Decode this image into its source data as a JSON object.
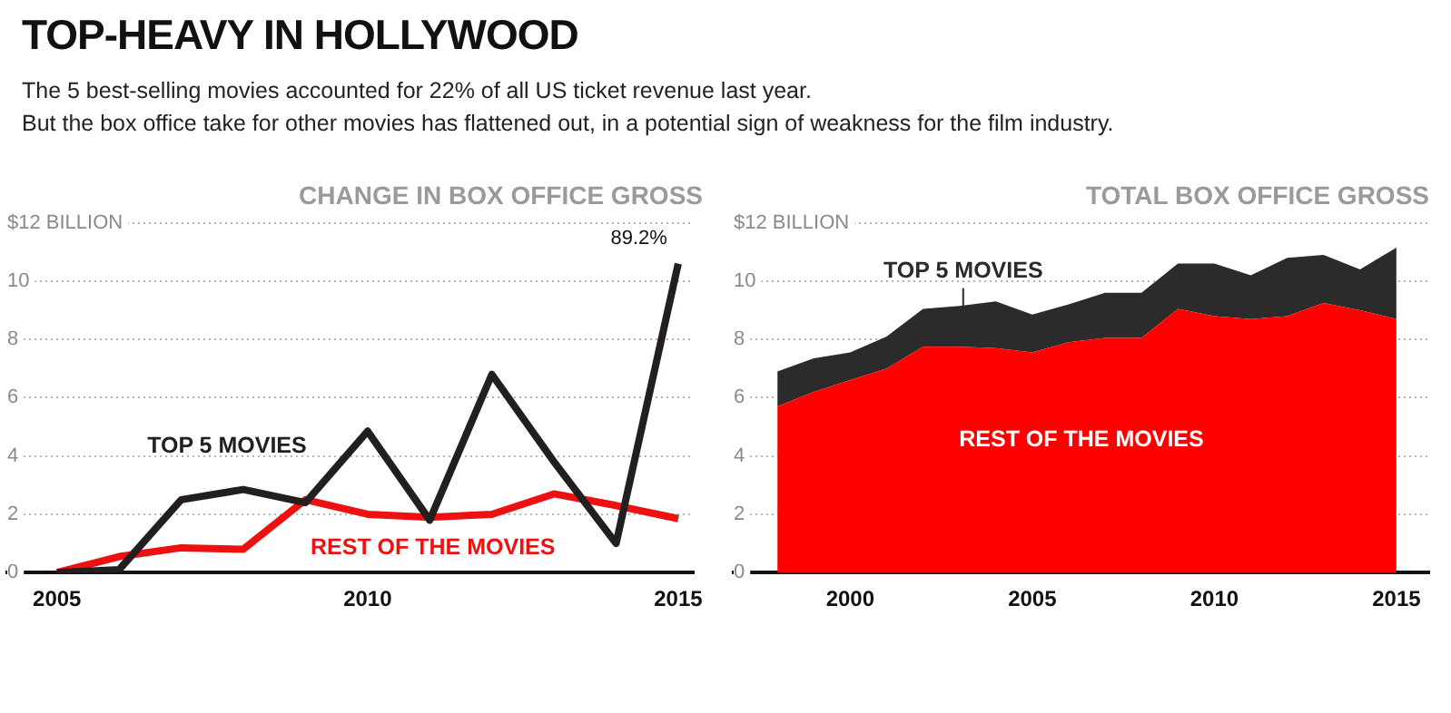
{
  "chart_data": [
    {
      "type": "line",
      "title": "CHANGE IN BOX OFFICE GROSS",
      "annotations": [
        "TOP-HEAVY IN HOLLYWOOD",
        "The 5 best-selling movies accounted for 22% of all US ticket revenue last year.",
        "But the box office take for other movies has flattened out, in a potential sign of weakness for the film industry.",
        {
          "text": "89.2%",
          "x": 2015,
          "y": 10.6
        }
      ],
      "x": [
        2005,
        2006,
        2007,
        2008,
        2009,
        2010,
        2011,
        2012,
        2013,
        2014,
        2015
      ],
      "series": [
        {
          "name": "REST OF THE MOVIES",
          "color": "#ee1111",
          "values": [
            0,
            0.55,
            0.85,
            0.8,
            2.5,
            2.0,
            1.9,
            2.0,
            2.7,
            2.3,
            1.85
          ]
        },
        {
          "name": "TOP 5 MOVIES",
          "color": "#231f20",
          "values": [
            0,
            0.1,
            2.5,
            2.85,
            2.4,
            4.85,
            1.8,
            6.8,
            3.8,
            1.0,
            10.6
          ]
        }
      ],
      "xlim": [
        2004.2,
        2015.25
      ],
      "xticks": [
        2005,
        2010,
        2015
      ],
      "ylim": [
        0,
        12
      ],
      "yticks": [
        0,
        2,
        4,
        6,
        8,
        10,
        {
          "value": 12,
          "label": "$12 BILLION"
        }
      ],
      "grid": "y",
      "legend": false,
      "marker": "none",
      "line_style": "solid"
    },
    {
      "type": "area",
      "title": "TOTAL BOX OFFICE GROSS",
      "stacked": true,
      "x": [
        1998,
        1999,
        2000,
        2001,
        2002,
        2003,
        2004,
        2005,
        2006,
        2007,
        2008,
        2009,
        2010,
        2011,
        2012,
        2013,
        2014,
        2015
      ],
      "series": [
        {
          "name": "REST OF THE MOVIES",
          "color": "#ff0000",
          "values": [
            5.7,
            6.2,
            6.6,
            7.0,
            7.75,
            7.75,
            7.7,
            7.55,
            7.9,
            8.05,
            8.05,
            9.05,
            8.8,
            8.7,
            8.8,
            9.25,
            9.0,
            8.7
          ]
        },
        {
          "name": "TOP 5 MOVIES",
          "color": "#2b2b2b",
          "values": [
            1.2,
            1.15,
            0.95,
            1.1,
            1.3,
            1.4,
            1.6,
            1.3,
            1.3,
            1.55,
            1.55,
            1.55,
            1.8,
            1.5,
            2.0,
            1.65,
            1.4,
            2.45
          ]
        }
      ],
      "xlim": [
        1996.8,
        2015.9
      ],
      "xticks": [
        2000,
        2005,
        2010,
        2015
      ],
      "ylim": [
        0,
        12
      ],
      "yticks": [
        0,
        2,
        4,
        6,
        8,
        10,
        {
          "value": 12,
          "label": "$12 BILLION"
        }
      ],
      "grid": "y",
      "legend": false,
      "marker": "none"
    }
  ]
}
